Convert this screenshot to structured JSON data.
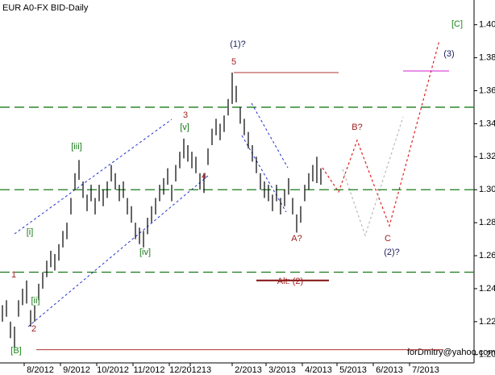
{
  "chart_data": {
    "type": "ohlc",
    "title": "EUR A0-FX BID-Daily",
    "footer": "forDmitry@yahoo.com",
    "color": "#000000",
    "high": [
      1.23,
      1.233,
      1.22,
      1.217,
      1.233,
      1.24,
      1.245,
      1.227,
      1.23,
      1.243,
      1.25,
      1.257,
      1.263,
      1.261,
      1.267,
      1.275,
      1.28,
      1.295,
      1.31,
      1.318,
      1.305,
      1.297,
      1.303,
      1.295,
      1.303,
      1.3,
      1.305,
      1.315,
      1.31,
      1.303,
      1.305,
      1.295,
      1.29,
      1.28,
      1.277,
      1.275,
      1.283,
      1.29,
      1.295,
      1.303,
      1.307,
      1.313,
      1.303,
      1.315,
      1.323,
      1.331,
      1.327,
      1.323,
      1.32,
      1.31,
      1.31,
      1.325,
      1.337,
      1.343,
      1.34,
      1.345,
      1.355,
      1.371,
      1.363,
      1.35,
      1.343,
      1.335,
      1.327,
      1.32,
      1.31,
      1.305,
      1.303,
      1.297,
      1.303,
      1.295,
      1.3,
      1.307,
      1.295,
      1.285,
      1.29,
      1.303,
      1.31,
      1.315,
      1.32,
      1.313
    ],
    "low": [
      1.22,
      1.223,
      1.21,
      1.204,
      1.223,
      1.23,
      1.231,
      1.217,
      1.22,
      1.233,
      1.24,
      1.247,
      1.253,
      1.251,
      1.257,
      1.265,
      1.27,
      1.285,
      1.3,
      1.306,
      1.295,
      1.287,
      1.293,
      1.285,
      1.293,
      1.29,
      1.295,
      1.305,
      1.3,
      1.293,
      1.295,
      1.285,
      1.28,
      1.27,
      1.267,
      1.265,
      1.273,
      1.28,
      1.285,
      1.293,
      1.297,
      1.303,
      1.293,
      1.305,
      1.313,
      1.319,
      1.317,
      1.313,
      1.31,
      1.3,
      1.298,
      1.315,
      1.327,
      1.333,
      1.33,
      1.335,
      1.345,
      1.352,
      1.353,
      1.34,
      1.333,
      1.325,
      1.317,
      1.31,
      1.3,
      1.295,
      1.293,
      1.287,
      1.293,
      1.285,
      1.29,
      1.297,
      1.285,
      1.274,
      1.28,
      1.293,
      1.3,
      1.305,
      1.304,
      1.303
    ],
    "ylim": [
      1.195,
      1.415
    ],
    "yticks": [
      {
        "value": 1.2,
        "label": "1.20"
      },
      {
        "value": 1.22,
        "label": "1.22"
      },
      {
        "value": 1.24,
        "label": "1.24"
      },
      {
        "value": 1.26,
        "label": "1.26"
      },
      {
        "value": 1.28,
        "label": "1.28"
      },
      {
        "value": 1.3,
        "label": "1.30"
      },
      {
        "value": 1.32,
        "label": "1.32"
      },
      {
        "value": 1.34,
        "label": "1.34"
      },
      {
        "value": 1.36,
        "label": "1.36"
      },
      {
        "value": 1.38,
        "label": "1.38"
      },
      {
        "value": 1.4,
        "label": "1.40"
      }
    ],
    "categories": [
      "8/2012",
      "9/2012",
      "10/2012",
      "11/2012",
      "12/2012",
      "13",
      "2/2013",
      "3/2013",
      "4/2013",
      "5/2013",
      "6/2013",
      "7/2013"
    ],
    "levels": [
      1.35,
      1.3,
      1.25
    ],
    "level_color": "#1a7a1a",
    "hlines": [
      {
        "value": 1.203,
        "color": "#b03030"
      },
      {
        "value": 1.371,
        "color": "#b03030"
      },
      {
        "value": 1.372,
        "color": "#d020d0"
      },
      {
        "value": 1.245,
        "color": "#801010"
      }
    ],
    "annotations": [
      {
        "text": "[C]",
        "color": "#1a8a1a"
      },
      {
        "text": "(1)?",
        "color": "#202060"
      },
      {
        "text": "5",
        "color": "#a02020"
      },
      {
        "text": "3",
        "color": "#a02020"
      },
      {
        "text": "[v]",
        "color": "#1a7a1a"
      },
      {
        "text": "[iii]",
        "color": "#1a7a1a"
      },
      {
        "text": "[i]",
        "color": "#1a7a1a"
      },
      {
        "text": "[ii]",
        "color": "#1a7a1a"
      },
      {
        "text": "[iv]",
        "color": "#1a7a1a"
      },
      {
        "text": "1",
        "color": "#a02020"
      },
      {
        "text": "2",
        "color": "#a02020"
      },
      {
        "text": "4",
        "color": "#a02020"
      },
      {
        "text": "B?",
        "color": "#a02020"
      },
      {
        "text": "A?",
        "color": "#a02020"
      },
      {
        "text": "C",
        "color": "#a02020"
      },
      {
        "text": "(2)?",
        "color": "#202060"
      },
      {
        "text": "Alt:  (2)",
        "color": "#a02020"
      },
      {
        "text": "(3)",
        "color": "#202060"
      },
      {
        "text": "[B]",
        "color": "#1a8a1a"
      }
    ]
  }
}
